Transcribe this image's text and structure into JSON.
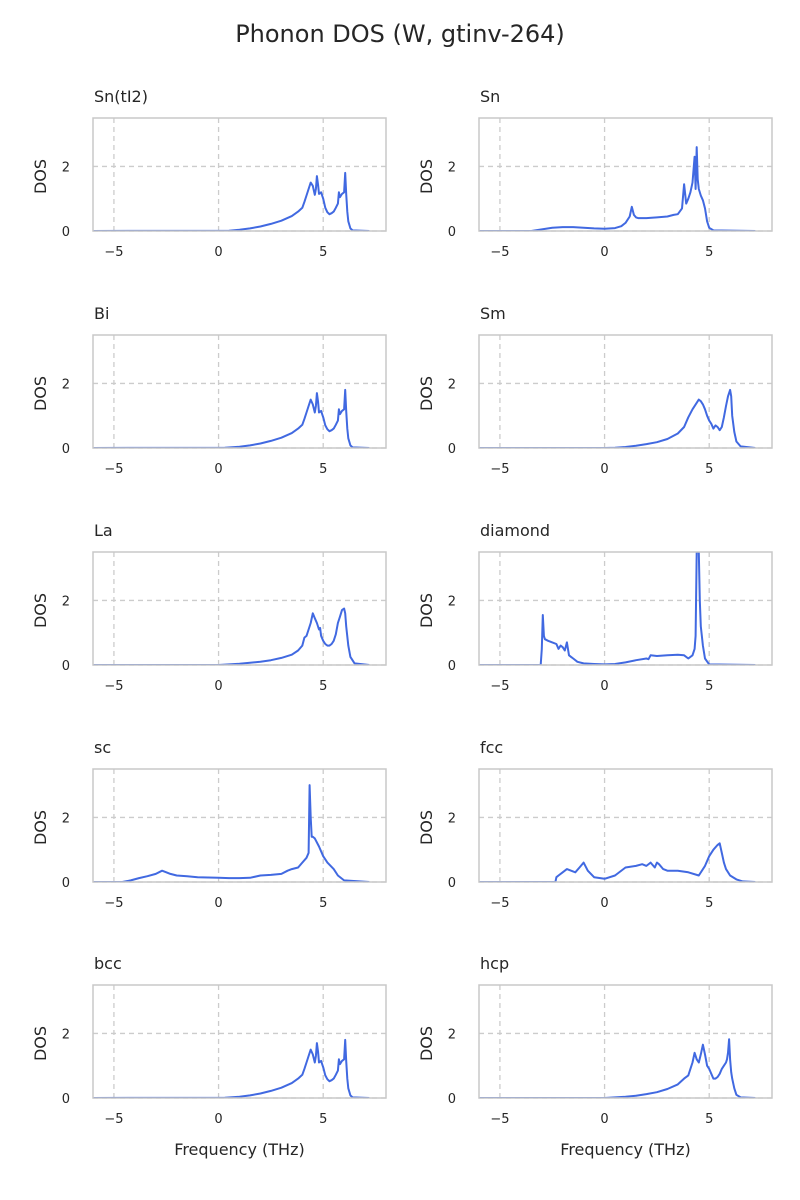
{
  "figure": {
    "title": "Phonon DOS (W, gtinv-264)",
    "line_color": "#4169e1",
    "grid_color": "#cccccc",
    "frame_color": "#c8c8c8",
    "text_color": "#262626"
  },
  "chart_data": [
    {
      "type": "line",
      "title": "Sn(tI2)",
      "xlabel": "",
      "ylabel": "DOS",
      "xlim": [
        -6,
        8
      ],
      "ylim": [
        0,
        3.5
      ],
      "xticks": [
        -5,
        0,
        5
      ],
      "yticks": [
        0,
        2
      ],
      "grid": true,
      "series": [
        {
          "x": [
            -6,
            0.5,
            1,
            1.5,
            2,
            2.5,
            3,
            3.5,
            3.8,
            4,
            4.1,
            4.2,
            4.3,
            4.4,
            4.5,
            4.6,
            4.65,
            4.7,
            4.75,
            4.8,
            4.9,
            5,
            5.1,
            5.2,
            5.3,
            5.4,
            5.5,
            5.6,
            5.7,
            5.75,
            5.8,
            5.85,
            5.9,
            6,
            6.05,
            6.1,
            6.15,
            6.2,
            6.3,
            6.4,
            7.2
          ],
          "y": [
            0,
            0.01,
            0.04,
            0.08,
            0.14,
            0.22,
            0.32,
            0.46,
            0.6,
            0.72,
            0.9,
            1.1,
            1.3,
            1.5,
            1.4,
            1.12,
            1.3,
            1.7,
            1.45,
            1.15,
            1.2,
            1.0,
            0.72,
            0.58,
            0.52,
            0.55,
            0.6,
            0.72,
            0.85,
            1.2,
            1.05,
            1.1,
            1.15,
            1.2,
            1.8,
            1.15,
            0.6,
            0.3,
            0.08,
            0.02,
            0
          ]
        }
      ]
    },
    {
      "type": "line",
      "title": "Sn",
      "xlabel": "",
      "ylabel": "DOS",
      "xlim": [
        -6,
        8
      ],
      "ylim": [
        0,
        3.5
      ],
      "xticks": [
        -5,
        0,
        5
      ],
      "yticks": [
        0,
        2
      ],
      "grid": true,
      "series": [
        {
          "x": [
            -6,
            -3.5,
            -3,
            -2.5,
            -2,
            -1.5,
            -1,
            -0.5,
            0,
            0.5,
            0.8,
            1,
            1.2,
            1.3,
            1.4,
            1.5,
            1.6,
            2,
            2.5,
            3,
            3.3,
            3.5,
            3.7,
            3.8,
            3.9,
            4,
            4.1,
            4.2,
            4.3,
            4.35,
            4.4,
            4.45,
            4.5,
            4.6,
            4.7,
            4.8,
            4.9,
            5,
            5.2,
            7.2
          ],
          "y": [
            0,
            0.0,
            0.05,
            0.1,
            0.12,
            0.12,
            0.1,
            0.08,
            0.07,
            0.09,
            0.15,
            0.25,
            0.45,
            0.75,
            0.5,
            0.42,
            0.4,
            0.4,
            0.42,
            0.45,
            0.5,
            0.52,
            0.7,
            1.45,
            0.85,
            1.0,
            1.2,
            1.5,
            2.3,
            1.3,
            2.6,
            1.6,
            1.3,
            1.1,
            0.95,
            0.7,
            0.3,
            0.1,
            0.02,
            0
          ]
        }
      ]
    },
    {
      "type": "line",
      "title": "Bi",
      "xlabel": "",
      "ylabel": "DOS",
      "xlim": [
        -6,
        8
      ],
      "ylim": [
        0,
        3.5
      ],
      "xticks": [
        -5,
        0,
        5
      ],
      "yticks": [
        0,
        2
      ],
      "grid": true,
      "series": [
        {
          "x": [
            -6,
            0.3,
            1,
            1.5,
            2,
            2.5,
            3,
            3.5,
            3.8,
            4,
            4.1,
            4.2,
            4.3,
            4.4,
            4.5,
            4.6,
            4.65,
            4.7,
            4.75,
            4.8,
            4.9,
            5,
            5.1,
            5.2,
            5.3,
            5.4,
            5.5,
            5.6,
            5.7,
            5.75,
            5.8,
            5.85,
            5.9,
            6,
            6.05,
            6.1,
            6.15,
            6.2,
            6.3,
            6.4,
            7.2
          ],
          "y": [
            0,
            0.01,
            0.04,
            0.08,
            0.14,
            0.22,
            0.32,
            0.46,
            0.6,
            0.72,
            0.9,
            1.1,
            1.3,
            1.5,
            1.35,
            1.1,
            1.3,
            1.7,
            1.45,
            1.1,
            1.15,
            0.95,
            0.7,
            0.58,
            0.52,
            0.55,
            0.6,
            0.72,
            0.85,
            1.2,
            1.05,
            1.1,
            1.15,
            1.2,
            1.8,
            1.15,
            0.6,
            0.3,
            0.08,
            0.02,
            0
          ]
        }
      ]
    },
    {
      "type": "line",
      "title": "Sm",
      "xlabel": "",
      "ylabel": "DOS",
      "xlim": [
        -6,
        8
      ],
      "ylim": [
        0,
        3.5
      ],
      "xticks": [
        -5,
        0,
        5
      ],
      "yticks": [
        0,
        2
      ],
      "grid": true,
      "series": [
        {
          "x": [
            -6,
            0,
            0.5,
            1,
            1.5,
            2,
            2.5,
            3,
            3.5,
            3.8,
            4,
            4.2,
            4.4,
            4.5,
            4.6,
            4.7,
            4.8,
            4.9,
            5,
            5.1,
            5.2,
            5.3,
            5.4,
            5.5,
            5.6,
            5.7,
            5.8,
            5.9,
            6,
            6.05,
            6.1,
            6.2,
            6.3,
            6.5,
            7.2
          ],
          "y": [
            0,
            0,
            0.01,
            0.03,
            0.07,
            0.12,
            0.18,
            0.28,
            0.45,
            0.65,
            0.95,
            1.2,
            1.4,
            1.5,
            1.45,
            1.35,
            1.2,
            1.0,
            0.85,
            0.75,
            0.6,
            0.7,
            0.65,
            0.55,
            0.65,
            0.95,
            1.3,
            1.6,
            1.8,
            1.6,
            1.0,
            0.5,
            0.2,
            0.05,
            0
          ]
        }
      ]
    },
    {
      "type": "line",
      "title": "La",
      "xlabel": "",
      "ylabel": "DOS",
      "xlim": [
        -6,
        8
      ],
      "ylim": [
        0,
        3.5
      ],
      "xticks": [
        -5,
        0,
        5
      ],
      "yticks": [
        0,
        2
      ],
      "grid": true,
      "series": [
        {
          "x": [
            -6,
            0,
            0.5,
            1,
            1.5,
            2,
            2.5,
            3,
            3.5,
            3.8,
            4,
            4.1,
            4.2,
            4.3,
            4.4,
            4.5,
            4.6,
            4.7,
            4.8,
            4.85,
            4.9,
            5,
            5.1,
            5.2,
            5.3,
            5.4,
            5.5,
            5.6,
            5.7,
            5.8,
            5.9,
            6,
            6.05,
            6.1,
            6.2,
            6.3,
            6.5,
            7.2
          ],
          "y": [
            0,
            0,
            0.02,
            0.04,
            0.07,
            0.1,
            0.15,
            0.22,
            0.32,
            0.45,
            0.6,
            0.85,
            0.9,
            1.1,
            1.3,
            1.6,
            1.45,
            1.3,
            1.1,
            1.15,
            0.9,
            0.75,
            0.65,
            0.6,
            0.6,
            0.65,
            0.75,
            0.95,
            1.3,
            1.5,
            1.7,
            1.75,
            1.6,
            1.2,
            0.6,
            0.25,
            0.05,
            0
          ]
        }
      ]
    },
    {
      "type": "line",
      "title": "diamond",
      "xlabel": "",
      "ylabel": "DOS",
      "xlim": [
        -6,
        8
      ],
      "ylim": [
        0,
        3.5
      ],
      "xticks": [
        -5,
        0,
        5
      ],
      "yticks": [
        0,
        2
      ],
      "grid": true,
      "series": [
        {
          "x": [
            -6,
            -3.6,
            -3.05,
            -3,
            -2.95,
            -2.9,
            -2.85,
            -2.7,
            -2.5,
            -2.3,
            -2.2,
            -2.1,
            -2,
            -1.9,
            -1.8,
            -1.7,
            -1.6,
            -1.5,
            -1.3,
            -1,
            -0.5,
            0,
            0.5,
            1,
            1.5,
            2,
            2.1,
            2.2,
            2.5,
            3,
            3.5,
            3.8,
            4,
            4.2,
            4.3,
            4.35,
            4.4,
            4.45,
            4.5,
            4.55,
            4.6,
            4.7,
            4.8,
            5.0,
            7.2
          ],
          "y": [
            0,
            0,
            0,
            0.5,
            1.55,
            0.9,
            0.8,
            0.75,
            0.7,
            0.65,
            0.5,
            0.6,
            0.55,
            0.45,
            0.7,
            0.3,
            0.25,
            0.2,
            0.1,
            0.05,
            0.03,
            0.02,
            0.03,
            0.08,
            0.15,
            0.2,
            0.18,
            0.3,
            0.28,
            0.3,
            0.32,
            0.3,
            0.2,
            0.3,
            0.5,
            0.9,
            3.5,
            3.5,
            3.5,
            2.0,
            1.2,
            0.6,
            0.2,
            0.02,
            0
          ]
        }
      ]
    },
    {
      "type": "line",
      "title": "sc",
      "xlabel": "",
      "ylabel": "DOS",
      "xlim": [
        -6,
        8
      ],
      "ylim": [
        0,
        3.5
      ],
      "xticks": [
        -5,
        0,
        5
      ],
      "yticks": [
        0,
        2
      ],
      "grid": true,
      "series": [
        {
          "x": [
            -6,
            -4.6,
            -4.2,
            -3.8,
            -3.4,
            -3,
            -2.7,
            -2.5,
            -2.3,
            -2,
            -1.5,
            -1,
            -0.5,
            0,
            0.5,
            1,
            1.5,
            2,
            2.5,
            3,
            3.3,
            3.5,
            3.8,
            4,
            4.2,
            4.3,
            4.35,
            4.4,
            4.45,
            4.5,
            4.6,
            4.8,
            5,
            5.2,
            5.5,
            5.7,
            6,
            7.2
          ],
          "y": [
            0,
            0,
            0.05,
            0.12,
            0.18,
            0.25,
            0.35,
            0.3,
            0.25,
            0.2,
            0.18,
            0.15,
            0.14,
            0.13,
            0.12,
            0.12,
            0.13,
            0.2,
            0.22,
            0.25,
            0.35,
            0.4,
            0.45,
            0.6,
            0.75,
            0.9,
            3.0,
            2.0,
            1.4,
            1.4,
            1.35,
            1.1,
            0.8,
            0.6,
            0.4,
            0.2,
            0.05,
            0
          ]
        }
      ]
    },
    {
      "type": "line",
      "title": "fcc",
      "xlabel": "",
      "ylabel": "DOS",
      "xlim": [
        -6,
        8
      ],
      "ylim": [
        0,
        3.5
      ],
      "xticks": [
        -5,
        0,
        5
      ],
      "yticks": [
        0,
        2
      ],
      "grid": true,
      "series": [
        {
          "x": [
            -6,
            -2.35,
            -2.3,
            -2.2,
            -2,
            -1.8,
            -1.6,
            -1.4,
            -1.2,
            -1.0,
            -0.8,
            -0.5,
            0,
            0.5,
            1,
            1.5,
            1.8,
            2,
            2.2,
            2.4,
            2.5,
            2.6,
            2.8,
            3,
            3.5,
            4,
            4.5,
            4.8,
            5,
            5.2,
            5.4,
            5.5,
            5.6,
            5.7,
            5.8,
            6,
            6.3,
            6.6,
            7.2
          ],
          "y": [
            0,
            0,
            0.15,
            0.2,
            0.3,
            0.4,
            0.35,
            0.3,
            0.45,
            0.6,
            0.35,
            0.15,
            0.1,
            0.2,
            0.45,
            0.5,
            0.55,
            0.5,
            0.6,
            0.45,
            0.6,
            0.55,
            0.4,
            0.35,
            0.35,
            0.3,
            0.2,
            0.5,
            0.8,
            1.0,
            1.15,
            1.2,
            0.9,
            0.6,
            0.4,
            0.2,
            0.08,
            0.02,
            0
          ]
        }
      ]
    },
    {
      "type": "line",
      "title": "bcc",
      "xlabel": "",
      "ylabel": "DOS",
      "xlim": [
        -6,
        8
      ],
      "ylim": [
        0,
        3.5
      ],
      "xticks": [
        -5,
        0,
        5
      ],
      "yticks": [
        0,
        2
      ],
      "grid": true,
      "series": [
        {
          "x": [
            -6,
            0.3,
            1,
            1.5,
            2,
            2.5,
            3,
            3.5,
            3.8,
            4,
            4.1,
            4.2,
            4.3,
            4.4,
            4.5,
            4.6,
            4.65,
            4.7,
            4.75,
            4.8,
            4.9,
            5,
            5.1,
            5.2,
            5.3,
            5.4,
            5.5,
            5.6,
            5.7,
            5.75,
            5.8,
            5.85,
            5.9,
            6,
            6.05,
            6.1,
            6.15,
            6.2,
            6.3,
            6.4,
            7.2
          ],
          "y": [
            0,
            0.01,
            0.04,
            0.08,
            0.14,
            0.22,
            0.32,
            0.46,
            0.6,
            0.72,
            0.9,
            1.1,
            1.3,
            1.5,
            1.35,
            1.1,
            1.3,
            1.7,
            1.45,
            1.1,
            1.15,
            0.95,
            0.7,
            0.58,
            0.52,
            0.55,
            0.6,
            0.72,
            0.85,
            1.2,
            1.05,
            1.1,
            1.15,
            1.2,
            1.8,
            1.15,
            0.6,
            0.3,
            0.08,
            0.02,
            0
          ]
        }
      ]
    },
    {
      "type": "line",
      "title": "hcp",
      "xlabel": "",
      "ylabel": "DOS",
      "xlim": [
        -6,
        8
      ],
      "ylim": [
        0,
        3.5
      ],
      "xticks": [
        -5,
        0,
        5
      ],
      "yticks": [
        0,
        2
      ],
      "grid": true,
      "series": [
        {
          "x": [
            -6,
            0,
            0.5,
            1,
            1.5,
            2,
            2.5,
            3,
            3.5,
            3.8,
            4,
            4.1,
            4.2,
            4.3,
            4.4,
            4.5,
            4.6,
            4.7,
            4.8,
            4.9,
            5,
            5.1,
            5.2,
            5.3,
            5.4,
            5.5,
            5.6,
            5.7,
            5.8,
            5.85,
            5.9,
            5.95,
            6.0,
            6.05,
            6.1,
            6.2,
            6.3,
            6.5,
            7.2
          ],
          "y": [
            0,
            0,
            0.02,
            0.04,
            0.07,
            0.12,
            0.18,
            0.28,
            0.42,
            0.6,
            0.7,
            0.9,
            1.1,
            1.4,
            1.2,
            1.1,
            1.35,
            1.65,
            1.35,
            1.0,
            0.9,
            0.75,
            0.6,
            0.6,
            0.65,
            0.75,
            0.9,
            1.0,
            1.1,
            1.2,
            1.4,
            1.82,
            1.2,
            0.8,
            0.6,
            0.3,
            0.1,
            0.02,
            0
          ]
        }
      ]
    }
  ]
}
